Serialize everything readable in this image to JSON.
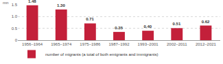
{
  "chart_data": {
    "type": "bar",
    "y_label": "mn",
    "categories": [
      "1956–1964",
      "1965–1974",
      "1975–1986",
      "1987–1992",
      "1993–2001",
      "2002–2011",
      "2012–2021"
    ],
    "series": [
      {
        "name": "number of migrants (a total of both emigrants and immigrants)",
        "color": "#c3203a",
        "values": [
          1.48,
          1.3,
          0.71,
          0.35,
          0.4,
          0.51,
          0.62
        ],
        "value_labels": [
          "1.48",
          "1.30",
          "0.71",
          "0.35",
          "0.40",
          "0.51",
          "0.62"
        ]
      }
    ],
    "ylim": [
      0,
      1.5
    ],
    "yticks": [
      0,
      0.5,
      {
        "value": 1,
        "label": "1.0"
      },
      1.5
    ],
    "grid": true,
    "data_labels": true,
    "legend": "bottom-left"
  }
}
